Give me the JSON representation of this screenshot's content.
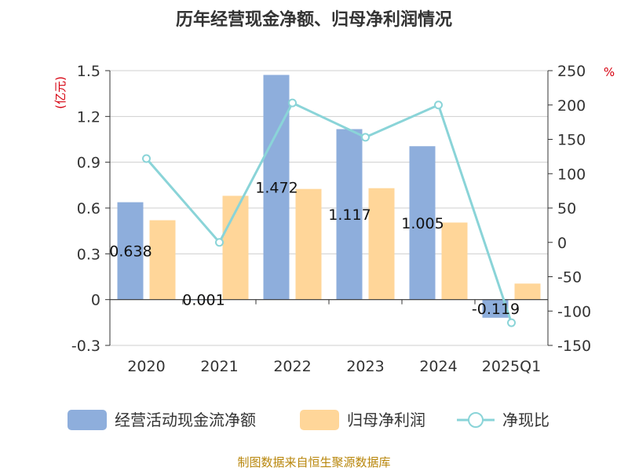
{
  "chart_data": {
    "type": "bar",
    "title": "历年经营现金净额、归母净利润情况",
    "categories": [
      "2020",
      "2021",
      "2022",
      "2023",
      "2024",
      "2025Q1"
    ],
    "series": [
      {
        "name": "经营活动现金流净额",
        "axis": "left",
        "kind": "bar",
        "color": "#8eaedc",
        "values": [
          0.638,
          0.001,
          1.472,
          1.117,
          1.005,
          -0.119
        ]
      },
      {
        "name": "归母净利润",
        "axis": "left",
        "kind": "bar",
        "color": "#ffd699",
        "values": [
          0.52,
          0.68,
          0.725,
          0.73,
          0.505,
          0.105
        ]
      },
      {
        "name": "净现比",
        "axis": "right",
        "kind": "line",
        "color": "#8ad4d8",
        "values": [
          122,
          0,
          203,
          153,
          200,
          -117
        ]
      }
    ],
    "data_labels": [
      "0.638",
      "0.001",
      "1.472",
      "1.117",
      "1.005",
      "-0.119"
    ],
    "y_left": {
      "unit": "(亿元)",
      "min": -0.3,
      "max": 1.5,
      "ticks": [
        -0.3,
        0,
        0.3,
        0.6,
        0.9,
        1.2,
        1.5
      ],
      "tick_labels": [
        "-0.3",
        "0",
        "0.3",
        "0.6",
        "0.9",
        "1.2",
        "1.5"
      ]
    },
    "y_right": {
      "unit": "%",
      "min": -150,
      "max": 250,
      "ticks": [
        -150,
        -100,
        -50,
        0,
        50,
        100,
        150,
        200,
        250
      ],
      "tick_labels": [
        "-150",
        "-100",
        "-50",
        "0",
        "50",
        "100",
        "150",
        "200",
        "250"
      ]
    },
    "grid": true,
    "legend_position": "bottom",
    "source": "制图数据来自恒生聚源数据库"
  }
}
